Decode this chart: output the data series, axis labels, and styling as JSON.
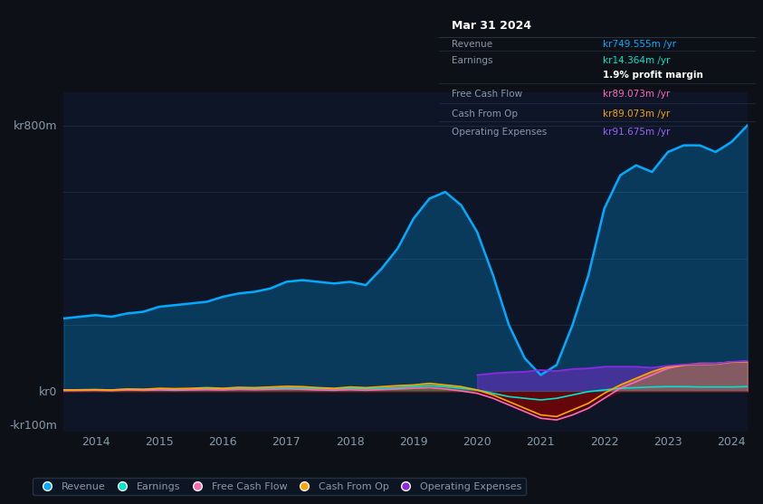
{
  "background_color": "#0d1117",
  "plot_bg_color": "#0d1526",
  "ylabel_top": "kr800m",
  "ylabel_zero": "kr0",
  "ylabel_neg": "-kr100m",
  "x_years": [
    2013.5,
    2014,
    2014.25,
    2014.5,
    2014.75,
    2015,
    2015.25,
    2015.5,
    2015.75,
    2016,
    2016.25,
    2016.5,
    2016.75,
    2017,
    2017.25,
    2017.5,
    2017.75,
    2018,
    2018.25,
    2018.5,
    2018.75,
    2019,
    2019.25,
    2019.5,
    2019.75,
    2020,
    2020.25,
    2020.5,
    2020.75,
    2021,
    2021.25,
    2021.5,
    2021.75,
    2022,
    2022.25,
    2022.5,
    2022.75,
    2023,
    2023.25,
    2023.5,
    2023.75,
    2024,
    2024.25
  ],
  "revenue": [
    220,
    230,
    225,
    235,
    240,
    255,
    260,
    265,
    270,
    285,
    295,
    300,
    310,
    330,
    335,
    330,
    325,
    330,
    320,
    370,
    430,
    520,
    580,
    600,
    560,
    480,
    350,
    200,
    100,
    50,
    80,
    200,
    350,
    550,
    650,
    680,
    660,
    720,
    740,
    740,
    720,
    750,
    800
  ],
  "earnings": [
    5,
    6,
    5,
    7,
    6,
    8,
    7,
    8,
    9,
    8,
    10,
    9,
    10,
    11,
    10,
    9,
    8,
    10,
    8,
    10,
    12,
    15,
    18,
    15,
    10,
    5,
    -5,
    -15,
    -20,
    -25,
    -20,
    -10,
    0,
    5,
    10,
    12,
    14,
    15,
    15,
    14,
    14,
    14,
    15
  ],
  "free_cash_flow": [
    3,
    4,
    3,
    5,
    4,
    5,
    4,
    5,
    6,
    5,
    7,
    6,
    7,
    8,
    7,
    5,
    4,
    6,
    4,
    6,
    8,
    10,
    12,
    8,
    2,
    -5,
    -20,
    -40,
    -60,
    -80,
    -85,
    -70,
    -50,
    -20,
    10,
    30,
    50,
    70,
    80,
    85,
    85,
    89,
    90
  ],
  "cash_from_op": [
    5,
    6,
    5,
    8,
    7,
    10,
    9,
    10,
    12,
    10,
    13,
    12,
    14,
    16,
    15,
    12,
    10,
    14,
    12,
    15,
    18,
    20,
    25,
    20,
    15,
    5,
    -10,
    -30,
    -50,
    -70,
    -75,
    -55,
    -35,
    -5,
    20,
    40,
    60,
    75,
    80,
    82,
    83,
    89,
    91
  ],
  "op_expenses": [
    0,
    0,
    0,
    0,
    0,
    0,
    0,
    0,
    0,
    0,
    0,
    0,
    0,
    0,
    0,
    0,
    0,
    0,
    0,
    0,
    0,
    0,
    0,
    0,
    0,
    50,
    55,
    58,
    60,
    65,
    62,
    68,
    70,
    75,
    75,
    75,
    72,
    78,
    82,
    83,
    84,
    90,
    92
  ],
  "revenue_color": "#00aaff",
  "earnings_color": "#00e5cc",
  "free_cash_flow_color": "#ff69b4",
  "cash_from_op_color": "#ffa500",
  "op_expenses_color": "#8a2be2",
  "grid_color": "#1e2a3a",
  "text_color": "#8899aa",
  "x_tick_labels": [
    "2014",
    "2015",
    "2016",
    "2017",
    "2018",
    "2019",
    "2020",
    "2021",
    "2022",
    "2023",
    "2024"
  ],
  "x_tick_positions": [
    2014,
    2015,
    2016,
    2017,
    2018,
    2019,
    2020,
    2021,
    2022,
    2023,
    2024
  ],
  "ylim": [
    -120,
    900
  ],
  "info_box": {
    "bg_color": "#111820",
    "border_color": "#2a3a4a",
    "title": "Mar 31 2024",
    "rows": [
      {
        "label": "Revenue",
        "value": "kr749.555m /yr",
        "value_color": "#00aaff",
        "bold": false
      },
      {
        "label": "Earnings",
        "value": "kr14.364m /yr",
        "value_color": "#00e5cc",
        "bold": false
      },
      {
        "label": "",
        "value": "1.9% profit margin",
        "value_color": "#ffffff",
        "bold": true
      },
      {
        "label": "Free Cash Flow",
        "value": "kr89.073m /yr",
        "value_color": "#ff69b4",
        "bold": false
      },
      {
        "label": "Cash From Op",
        "value": "kr89.073m /yr",
        "value_color": "#ffa500",
        "bold": false
      },
      {
        "label": "Operating Expenses",
        "value": "kr91.675m /yr",
        "value_color": "#9966ff",
        "bold": false
      }
    ]
  },
  "legend_labels": [
    "Revenue",
    "Earnings",
    "Free Cash Flow",
    "Cash From Op",
    "Operating Expenses"
  ],
  "legend_colors": [
    "#00aaff",
    "#00e5cc",
    "#ff69b4",
    "#ffa500",
    "#8a2be2"
  ]
}
